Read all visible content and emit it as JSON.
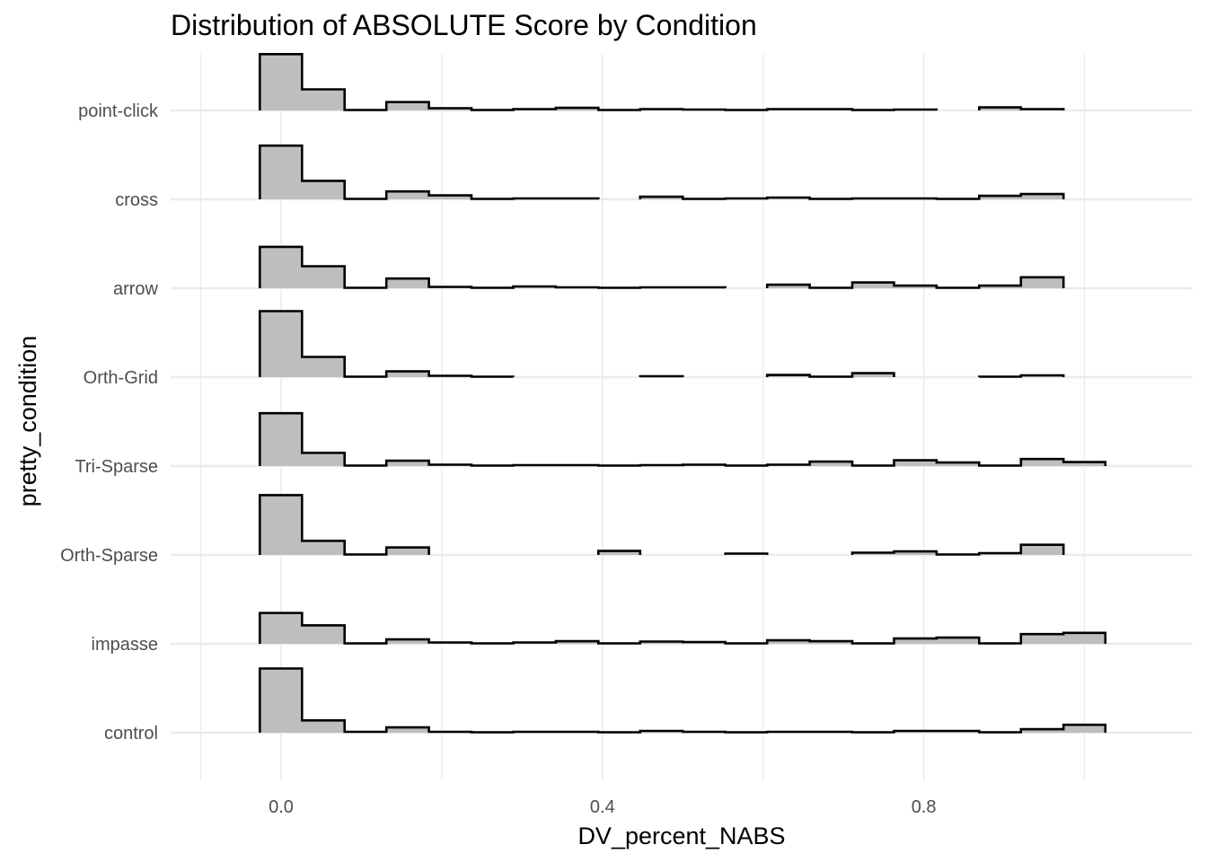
{
  "chart_data": {
    "type": "ridgeline_histogram",
    "title": "Distribution of ABSOLUTE Score by Condition",
    "xlabel": "DV_percent_NABS",
    "ylabel": "pretty_condition",
    "xlim": [
      -0.14,
      1.14
    ],
    "x_ticks": [
      0.0,
      0.4,
      0.8
    ],
    "x_tick_labels": [
      "0.0",
      "0.4",
      "0.8"
    ],
    "grid": true,
    "fill_color": "#bebebe",
    "line_color": "#000000",
    "grid_color": "#ebebeb",
    "bin_edges": [
      -0.0265,
      0.026,
      0.079,
      0.131,
      0.184,
      0.237,
      0.289,
      0.342,
      0.395,
      0.447,
      0.5,
      0.553,
      0.605,
      0.658,
      0.711,
      0.763,
      0.816,
      0.869,
      0.921,
      0.974,
      1.026
    ],
    "series": [
      {
        "name": "control",
        "values": [
          73,
          14,
          1,
          6,
          1,
          0.5,
          1,
          1,
          0.5,
          2,
          1,
          0.5,
          1,
          1,
          0.5,
          2,
          2,
          0.5,
          4,
          9
        ]
      },
      {
        "name": "impasse",
        "values": [
          35,
          21,
          0.5,
          5,
          1.5,
          0.5,
          1.5,
          3,
          0.5,
          2.5,
          2,
          0.5,
          4,
          3,
          0.5,
          6,
          7,
          0.5,
          11,
          12.5
        ]
      },
      {
        "name": "Orth-Sparse",
        "values": [
          68,
          16,
          0.5,
          8.5,
          null,
          null,
          null,
          null,
          4.5,
          null,
          null,
          1.5,
          null,
          null,
          2.5,
          4,
          0.5,
          2,
          11.5,
          null
        ]
      },
      {
        "name": "Tri-Sparse",
        "values": [
          60,
          15,
          0.5,
          6,
          1.5,
          0.5,
          1,
          1,
          0.5,
          1,
          1.5,
          0.5,
          1.5,
          5,
          0.5,
          6.5,
          4,
          0.5,
          8,
          4.5
        ]
      },
      {
        "name": "Orth-Grid",
        "values": [
          75,
          23,
          0.5,
          6.5,
          1.5,
          0.5,
          null,
          null,
          null,
          1,
          null,
          null,
          2.5,
          0.5,
          4.5,
          null,
          null,
          0.5,
          2,
          null
        ]
      },
      {
        "name": "arrow",
        "values": [
          47,
          25,
          0.5,
          11,
          1.5,
          0.5,
          2,
          1,
          0.5,
          1,
          1,
          null,
          4,
          0.5,
          6.5,
          3,
          0.5,
          3,
          12.5,
          null
        ]
      },
      {
        "name": "cross",
        "values": [
          61,
          21,
          0.5,
          9,
          4.5,
          0.5,
          1,
          1,
          null,
          3,
          0.5,
          1,
          2,
          0.5,
          1,
          1,
          0.5,
          4,
          6,
          null
        ]
      },
      {
        "name": "point-click",
        "values": [
          64,
          24,
          0.5,
          9.5,
          2.5,
          0.5,
          1.5,
          3,
          0.5,
          1.5,
          1,
          0.5,
          1.5,
          1.5,
          0.5,
          1,
          null,
          3.5,
          1.5,
          null
        ]
      }
    ]
  }
}
